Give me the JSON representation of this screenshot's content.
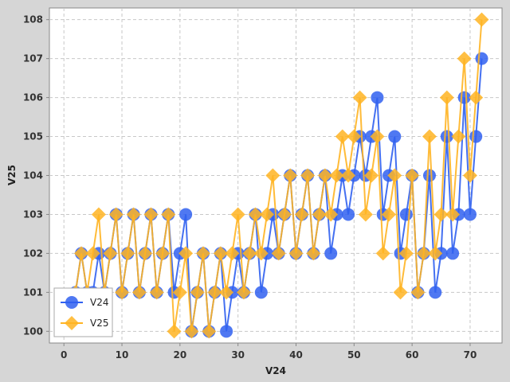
{
  "chart_data": {
    "type": "line",
    "title": "",
    "xlabel": "V24",
    "ylabel": "V25",
    "xlim": [
      -2.5,
      75.5
    ],
    "ylim": [
      99.7,
      108.3
    ],
    "xticks": [
      0,
      10,
      20,
      30,
      40,
      50,
      60,
      70
    ],
    "yticks": [
      100,
      101,
      102,
      103,
      104,
      105,
      106,
      107,
      108
    ],
    "grid": true,
    "legend_position": "bottom-left",
    "series": [
      {
        "name": "V24",
        "color": "#3060f0",
        "marker": "circle",
        "x": [
          2,
          3,
          4,
          5,
          6,
          7,
          8,
          9,
          10,
          11,
          12,
          13,
          14,
          15,
          16,
          17,
          18,
          19,
          20,
          21,
          22,
          23,
          24,
          25,
          26,
          27,
          28,
          29,
          30,
          31,
          32,
          33,
          34,
          35,
          36,
          37,
          38,
          39,
          40,
          41,
          42,
          43,
          44,
          45,
          46,
          47,
          48,
          49,
          50,
          51,
          52,
          53,
          54,
          55,
          56,
          57,
          58,
          59,
          60,
          61,
          62,
          63,
          64,
          65,
          66,
          67,
          68,
          69,
          70,
          71,
          72
        ],
        "y": [
          101,
          102,
          101,
          101,
          102,
          101,
          102,
          103,
          101,
          102,
          103,
          101,
          102,
          103,
          101,
          102,
          103,
          101,
          102,
          103,
          100,
          101,
          102,
          100,
          101,
          102,
          100,
          101,
          102,
          101,
          102,
          103,
          101,
          102,
          103,
          102,
          103,
          104,
          102,
          103,
          104,
          102,
          103,
          104,
          102,
          103,
          104,
          103,
          104,
          105,
          104,
          105,
          106,
          103,
          104,
          105,
          102,
          103,
          104,
          101,
          102,
          104,
          101,
          102,
          105,
          102,
          103,
          106,
          103,
          105,
          107
        ]
      },
      {
        "name": "V25",
        "color": "#ffb422",
        "marker": "diamond",
        "x": [
          2,
          3,
          4,
          5,
          6,
          7,
          8,
          9,
          10,
          11,
          12,
          13,
          14,
          15,
          16,
          17,
          18,
          19,
          20,
          21,
          22,
          23,
          24,
          25,
          26,
          27,
          28,
          29,
          30,
          31,
          32,
          33,
          34,
          35,
          36,
          37,
          38,
          39,
          40,
          41,
          42,
          43,
          44,
          45,
          46,
          47,
          48,
          49,
          50,
          51,
          52,
          53,
          54,
          55,
          56,
          57,
          58,
          59,
          60,
          61,
          62,
          63,
          64,
          65,
          66,
          67,
          68,
          69,
          70,
          71,
          72
        ],
        "y": [
          101,
          102,
          101,
          102,
          103,
          101,
          102,
          103,
          101,
          102,
          103,
          101,
          102,
          103,
          101,
          102,
          103,
          100,
          101,
          102,
          100,
          101,
          102,
          100,
          101,
          102,
          101,
          102,
          103,
          101,
          102,
          103,
          102,
          103,
          104,
          102,
          103,
          104,
          102,
          103,
          104,
          102,
          103,
          104,
          103,
          104,
          105,
          104,
          105,
          106,
          103,
          104,
          105,
          102,
          103,
          104,
          101,
          102,
          104,
          101,
          102,
          105,
          102,
          103,
          106,
          103,
          105,
          107,
          104,
          106,
          108
        ]
      }
    ]
  }
}
